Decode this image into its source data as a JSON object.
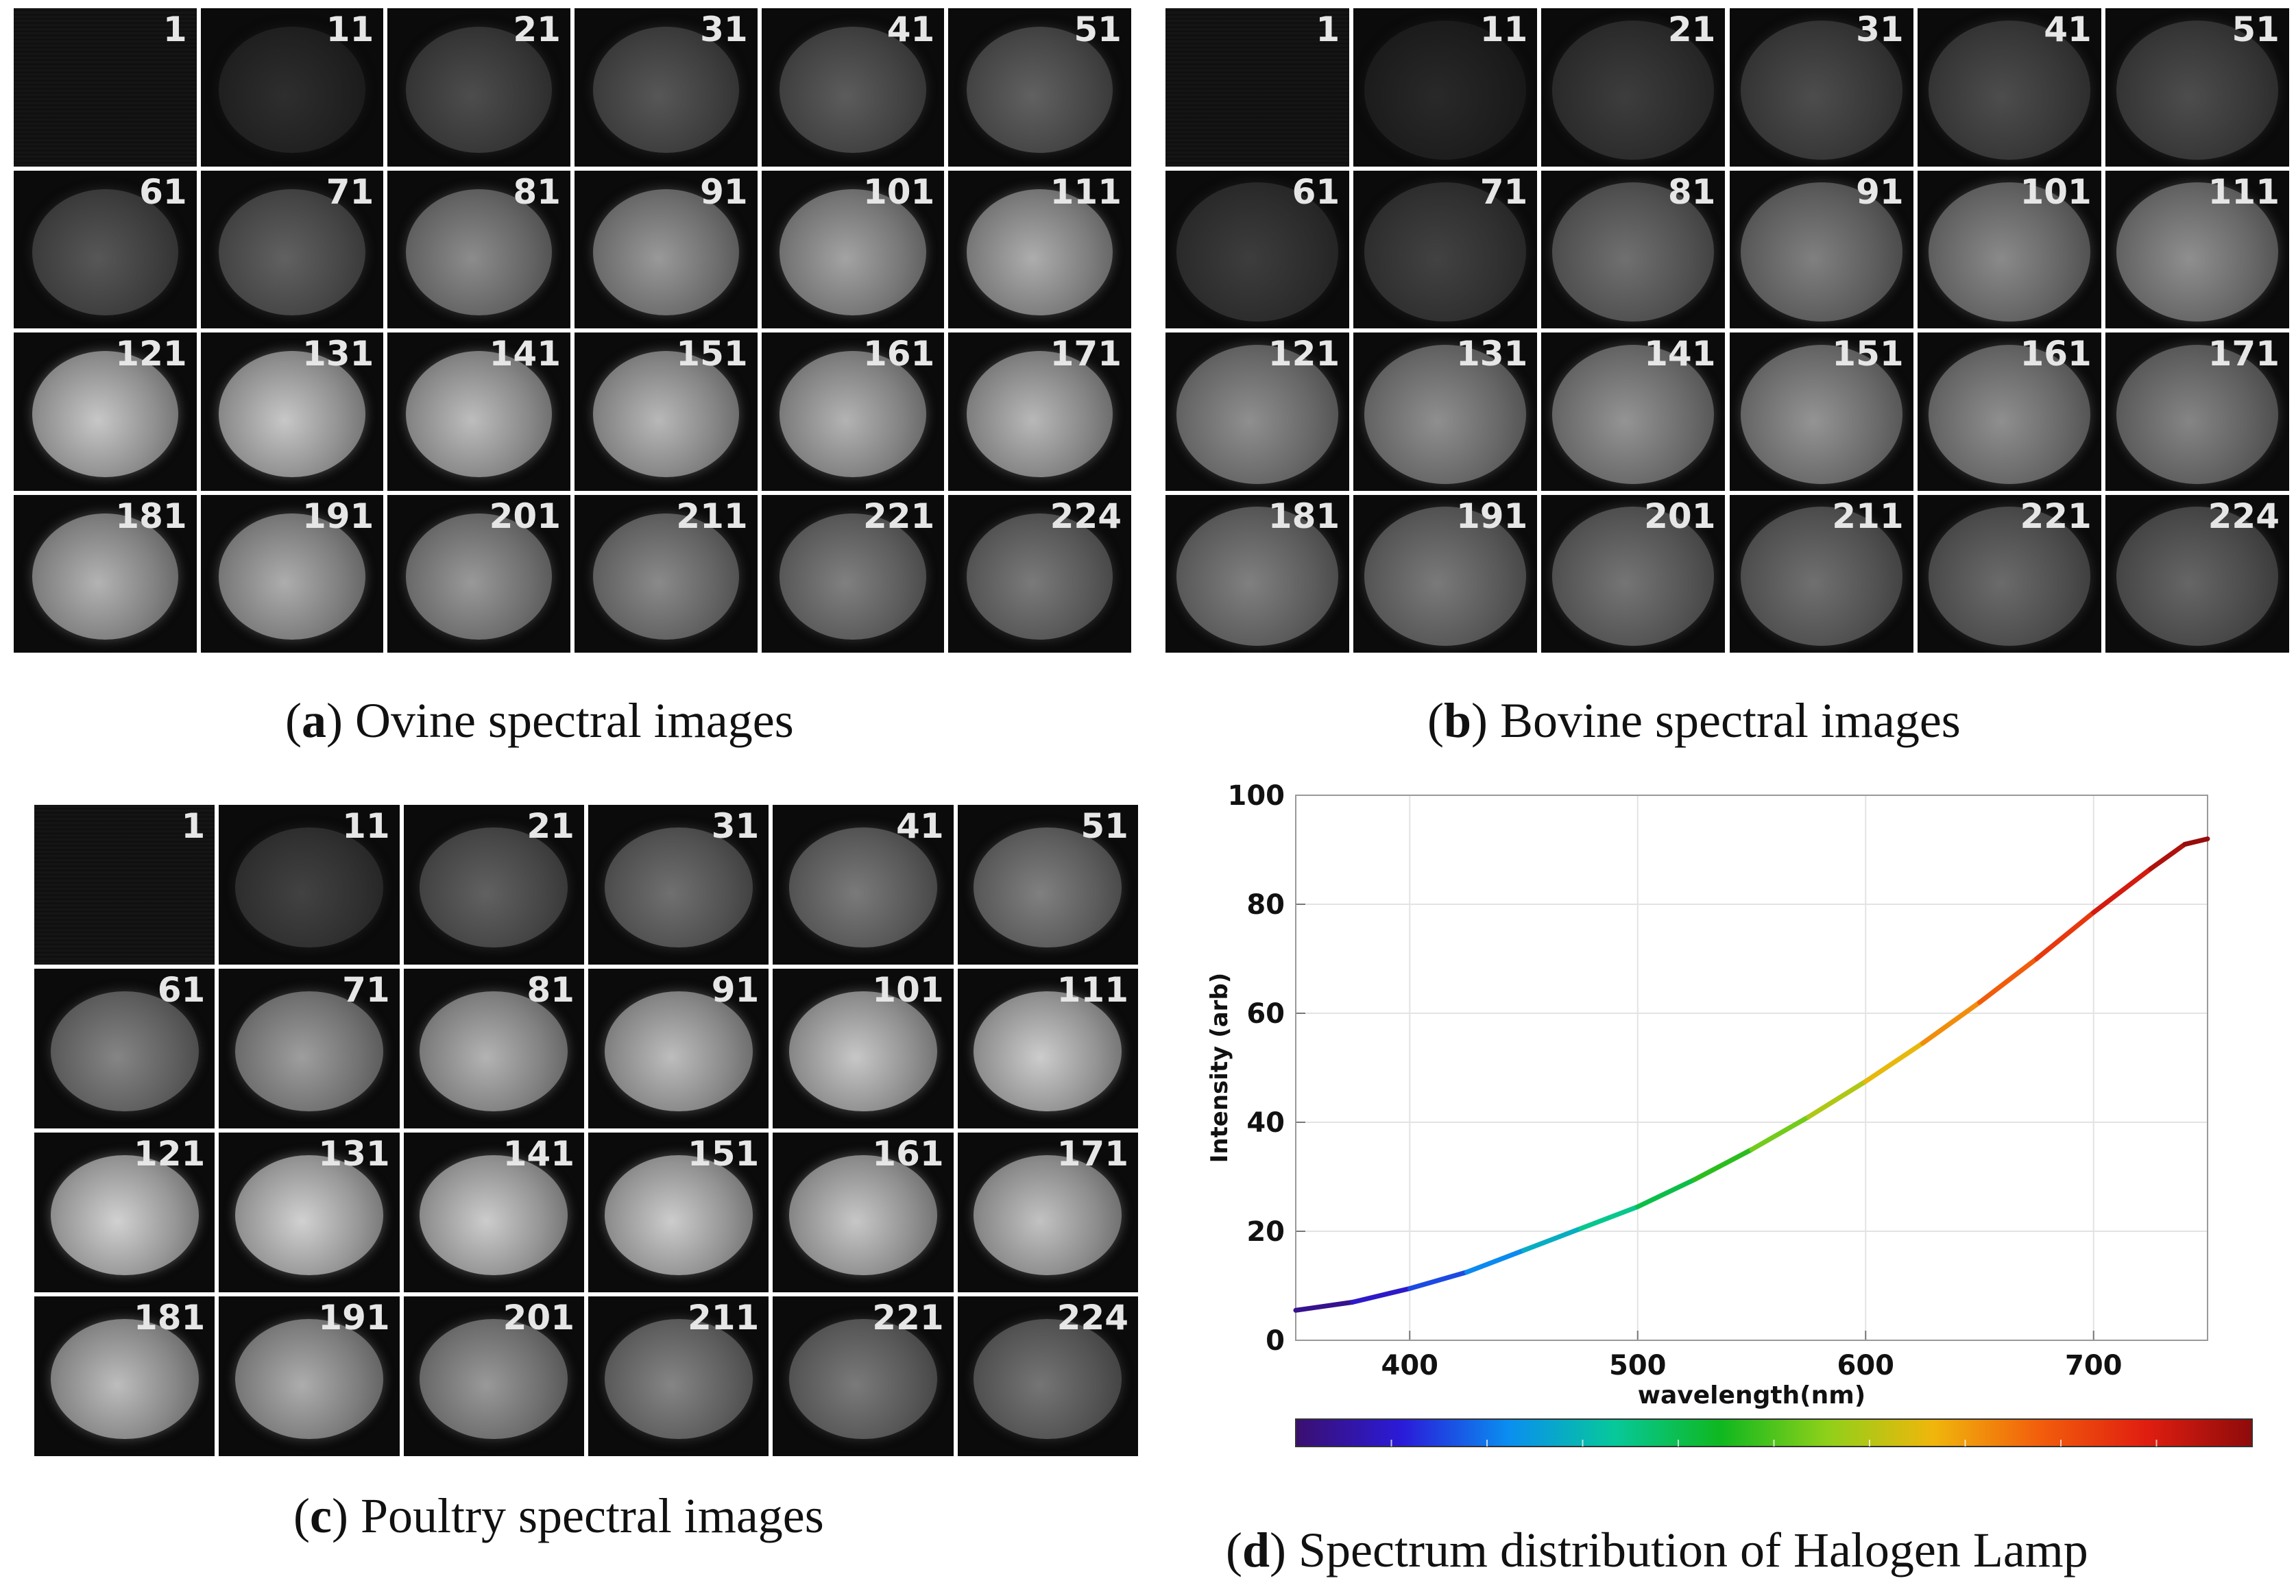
{
  "bands": [
    "1",
    "11",
    "21",
    "31",
    "41",
    "51",
    "61",
    "71",
    "81",
    "91",
    "101",
    "111",
    "121",
    "131",
    "141",
    "151",
    "161",
    "171",
    "181",
    "191",
    "201",
    "211",
    "221",
    "224"
  ],
  "panels": {
    "a": {
      "letter": "a",
      "caption": "Ovine spectral images",
      "brightness": [
        0.12,
        0.18,
        0.3,
        0.34,
        0.36,
        0.38,
        0.34,
        0.38,
        0.55,
        0.6,
        0.64,
        0.68,
        0.78,
        0.78,
        0.74,
        0.72,
        0.7,
        0.72,
        0.7,
        0.68,
        0.6,
        0.54,
        0.5,
        0.48
      ]
    },
    "b": {
      "letter": "b",
      "caption": "Bovine spectral images",
      "brightness": [
        0.1,
        0.16,
        0.24,
        0.3,
        0.3,
        0.3,
        0.24,
        0.26,
        0.44,
        0.5,
        0.54,
        0.56,
        0.56,
        0.56,
        0.58,
        0.58,
        0.56,
        0.52,
        0.5,
        0.48,
        0.46,
        0.44,
        0.42,
        0.4
      ]
    },
    "c": {
      "letter": "c",
      "caption": "Poultry spectral images",
      "brightness": [
        0.12,
        0.26,
        0.38,
        0.44,
        0.48,
        0.5,
        0.52,
        0.62,
        0.7,
        0.74,
        0.78,
        0.8,
        0.82,
        0.82,
        0.8,
        0.8,
        0.78,
        0.76,
        0.74,
        0.68,
        0.6,
        0.52,
        0.48,
        0.46
      ]
    },
    "d": {
      "letter": "d",
      "caption": "Spectrum distribution of Halogen Lamp"
    }
  },
  "chart_data": {
    "type": "line",
    "title": "",
    "xlabel": "wavelength(nm)",
    "ylabel": "Intensity (arb)",
    "xlim": [
      350,
      750
    ],
    "ylim": [
      0,
      100
    ],
    "x_ticks": [
      "400",
      "500",
      "600",
      "700"
    ],
    "y_ticks": [
      "0",
      "20",
      "40",
      "60",
      "80",
      "100"
    ],
    "grid": true,
    "series": [
      {
        "name": "Halogen Lamp",
        "x": [
          350,
          375,
          400,
          425,
          450,
          475,
          500,
          525,
          550,
          575,
          600,
          625,
          650,
          675,
          700,
          725,
          740,
          750
        ],
        "y": [
          5.5,
          7,
          9.5,
          12.5,
          16.5,
          20.5,
          24.5,
          29.5,
          35,
          41,
          47.5,
          54.5,
          62,
          70,
          78.5,
          86.5,
          91,
          92
        ]
      }
    ],
    "colorbar": [
      "#3b0f6f",
      "#2a1bd9",
      "#0a8ef0",
      "#07c89a",
      "#0fb81f",
      "#8fd01a",
      "#f0b60c",
      "#f25e0c",
      "#e01e10",
      "#8e0b0b"
    ]
  }
}
